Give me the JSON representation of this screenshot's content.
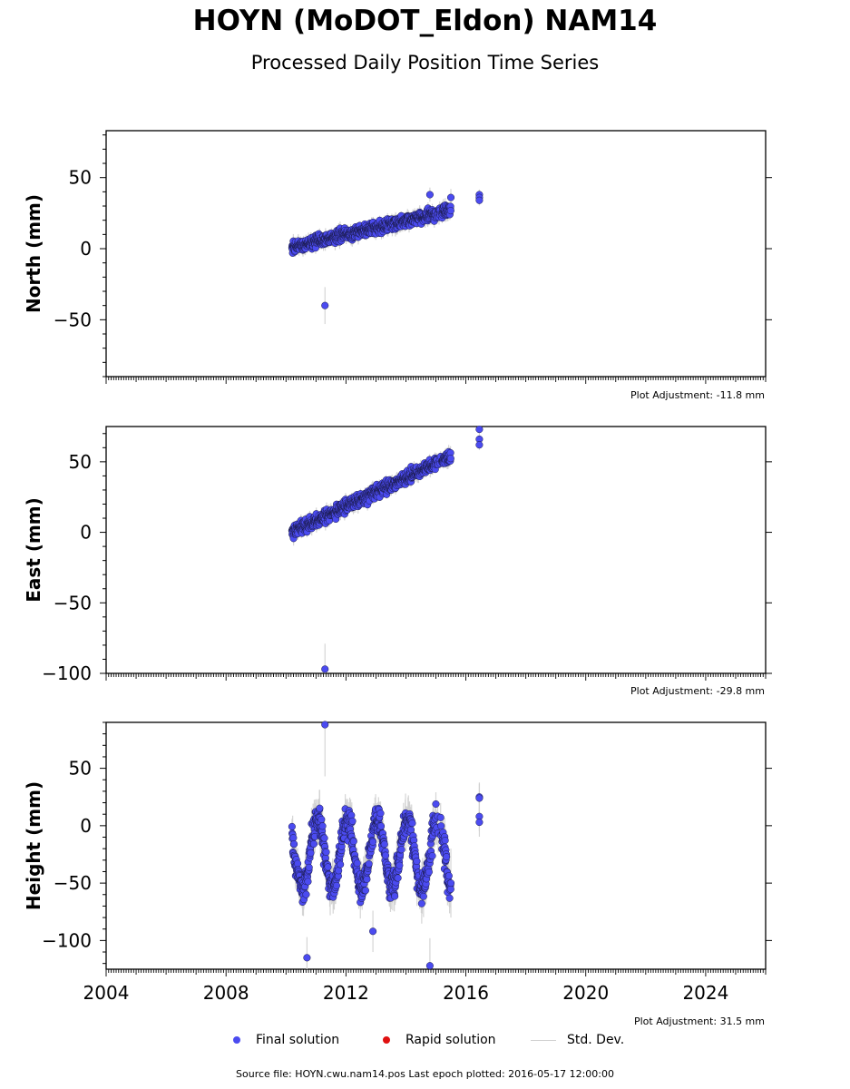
{
  "title": "HOYN (MoDOT_Eldon) NAM14",
  "subtitle": "Processed Daily Position Time Series",
  "source_line": "Source file: HOYN.cwu.nam14.pos  Last epoch plotted: 2016-05-17 12:00:00",
  "legend": {
    "final": "Final solution",
    "rapid": "Rapid solution",
    "std": "Std. Dev."
  },
  "colors": {
    "final": "#4b4bf0",
    "rapid": "#e01010",
    "std": "#d0d0d0",
    "marker_edge": "#1a1a4a"
  },
  "chart_data": [
    {
      "type": "scatter",
      "ylabel": "North (mm)",
      "adjustment": "Plot Adjustment: -11.8 mm",
      "xlim": [
        2004,
        2026
      ],
      "ylim": [
        -90,
        83
      ],
      "yticks": [
        -50,
        0,
        50
      ],
      "ytick_labels": [
        "−50",
        "0",
        "50"
      ],
      "trend": {
        "start_year": 2010.2,
        "start": 1,
        "end_year": 2015.5,
        "end": 27
      },
      "noise_amp": 4,
      "err_amp": 4,
      "cluster": {
        "year": 2016.45,
        "values": [
          38,
          36,
          34
        ]
      },
      "outliers": [
        {
          "x": 2011.3,
          "y": -40,
          "err": 13
        },
        {
          "x": 2014.8,
          "y": 38,
          "err": 5
        },
        {
          "x": 2015.5,
          "y": 36,
          "err": 6
        }
      ]
    },
    {
      "type": "scatter",
      "ylabel": "East (mm)",
      "adjustment": "Plot Adjustment: -29.8 mm",
      "xlim": [
        2004,
        2026
      ],
      "ylim": [
        -100,
        75
      ],
      "yticks": [
        -100,
        -50,
        0,
        50
      ],
      "ytick_labels": [
        "−100",
        "−50",
        "0",
        "50"
      ],
      "trend": {
        "start_year": 2010.2,
        "start": 0,
        "end_year": 2015.5,
        "end": 54
      },
      "noise_amp": 4,
      "err_amp": 4,
      "cluster": {
        "year": 2016.45,
        "values": [
          73,
          66,
          62
        ]
      },
      "outliers": [
        {
          "x": 2011.3,
          "y": -97,
          "err": 18
        }
      ]
    },
    {
      "type": "scatter",
      "ylabel": "Height (mm)",
      "adjustment": "Plot Adjustment: 31.5 mm",
      "xlim": [
        2004,
        2026
      ],
      "ylim": [
        -125,
        90
      ],
      "yticks": [
        -100,
        -50,
        0,
        50
      ],
      "ytick_labels": [
        "−100",
        "−50",
        "0",
        "50"
      ],
      "xtick_labels": [
        "2004",
        "2008",
        "2012",
        "2016",
        "2020",
        "2024"
      ],
      "trend": {
        "start_year": 2010.2,
        "start": -25,
        "end_year": 2015.5,
        "end": -25
      },
      "seasonal_amp": 30,
      "noise_amp": 12,
      "err_amp": 14,
      "cluster": {
        "year": 2016.45,
        "values": [
          25,
          8,
          3,
          24
        ]
      },
      "outliers": [
        {
          "x": 2010.7,
          "y": -115,
          "err": 18
        },
        {
          "x": 2011.3,
          "y": 88,
          "err": 45
        },
        {
          "x": 2012.9,
          "y": -92,
          "err": 18
        },
        {
          "x": 2014.8,
          "y": -122,
          "err": 24
        },
        {
          "x": 2015.5,
          "y": -50,
          "err": 30
        }
      ]
    }
  ]
}
